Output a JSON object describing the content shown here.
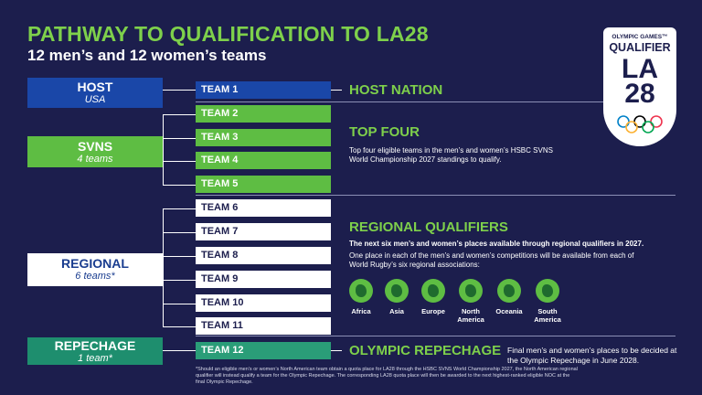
{
  "header": {
    "title": "PATHWAY TO QUALIFICATION TO LA28",
    "subtitle": "12 men’s and 12 women’s teams"
  },
  "sources": {
    "host": {
      "name": "HOST",
      "sub": "USA"
    },
    "svns": {
      "name": "SVNS",
      "sub": "4 teams"
    },
    "regional": {
      "name": "REGIONAL",
      "sub": "6 teams*"
    },
    "repechage": {
      "name": "REPECHAGE",
      "sub": "1 team*"
    }
  },
  "teams": [
    "TEAM 1",
    "TEAM 2",
    "TEAM 3",
    "TEAM 4",
    "TEAM 5",
    "TEAM 6",
    "TEAM 7",
    "TEAM 8",
    "TEAM 9",
    "TEAM 10",
    "TEAM 11",
    "TEAM 12"
  ],
  "sections": {
    "host_nation": {
      "heading": "HOST NATION"
    },
    "top_four": {
      "heading": "TOP FOUR",
      "desc": "Top four eligible teams in the men’s and women’s HSBC SVNS World Championship 2027 standings to qualify."
    },
    "regional": {
      "heading": "REGIONAL QUALIFIERS",
      "desc_bold": "The next six men’s and women’s places available through regional qualifiers in 2027.",
      "desc": "One place in each of the men’s and women’s competitions will be available from each of World Rugby’s six regional associations:",
      "regions": [
        "Africa",
        "Asia",
        "Europe",
        "North America",
        "Oceania",
        "South America"
      ]
    },
    "repechage": {
      "heading": "OLYMPIC REPECHAGE",
      "desc": "Final men’s and women’s places to be decided at the Olympic Repechage in June 2028."
    }
  },
  "footnote": "*Should an eligible men’s or women’s North American team obtain a quota place for LA28 through the HSBC SVNS World Championship 2027, the North American regional qualifier will instead qualify a team for the Olympic Repechage. The corresponding LA28 quota place will then be awarded to the next highest-ranked eligible NOC at the final Olympic Repechage.",
  "logo": {
    "top": "OLYMPIC GAMES™",
    "main": "QUALIFIER",
    "la": "LA",
    "num": "28"
  },
  "colors": {
    "background": "#1c1e4d",
    "green": "#5ebd43",
    "blue": "#1a47a8",
    "teal": "#1e8e6e",
    "accent_text": "#7ed04b"
  }
}
